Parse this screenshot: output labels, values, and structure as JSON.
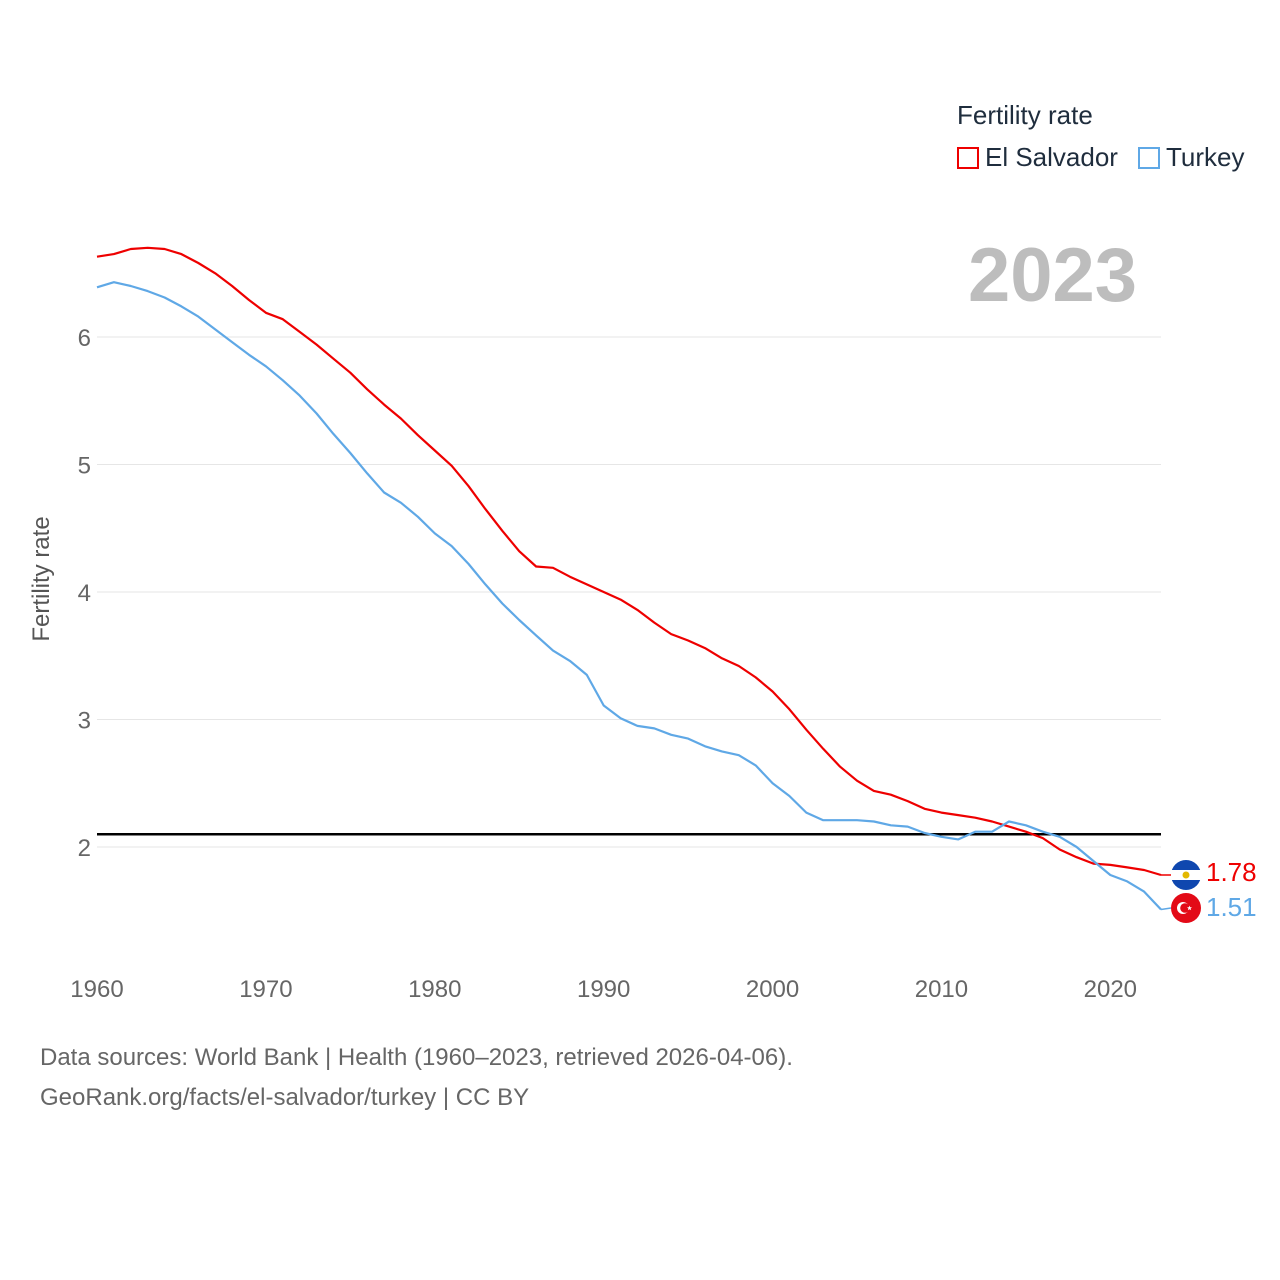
{
  "legend": {
    "title": "Fertility rate",
    "items": [
      {
        "label": "El Salvador",
        "color": "#ee0000"
      },
      {
        "label": "Turkey",
        "color": "#5fa8e6"
      }
    ]
  },
  "year_label": "2023",
  "y_axis_title": "Fertility rate",
  "end_labels": {
    "el_salvador": "1.78",
    "turkey": "1.51"
  },
  "footer": {
    "line1": "Data sources: World Bank | Health (1960–2023, retrieved 2026-04-06).",
    "line2": "GeoRank.org/facts/el-salvador/turkey | CC BY"
  },
  "chart_data": {
    "type": "line",
    "title": "Fertility rate",
    "xlabel": "",
    "ylabel": "Fertility rate",
    "xlim": [
      1960,
      2023
    ],
    "ylim": [
      1.2,
      6.9
    ],
    "x_ticks": [
      1960,
      1970,
      1980,
      1990,
      2000,
      2010,
      2020
    ],
    "y_ticks": [
      2,
      3,
      4,
      5,
      6
    ],
    "reference_line": 2.1,
    "grid": "horizontal",
    "legend_position": "top-right",
    "x": [
      1960,
      1961,
      1962,
      1963,
      1964,
      1965,
      1966,
      1967,
      1968,
      1969,
      1970,
      1971,
      1972,
      1973,
      1974,
      1975,
      1976,
      1977,
      1978,
      1979,
      1980,
      1981,
      1982,
      1983,
      1984,
      1985,
      1986,
      1987,
      1988,
      1989,
      1990,
      1991,
      1992,
      1993,
      1994,
      1995,
      1996,
      1997,
      1998,
      1999,
      2000,
      2001,
      2002,
      2003,
      2004,
      2005,
      2006,
      2007,
      2008,
      2009,
      2010,
      2011,
      2012,
      2013,
      2014,
      2015,
      2016,
      2017,
      2018,
      2019,
      2020,
      2021,
      2022,
      2023
    ],
    "series": [
      {
        "name": "El Salvador",
        "color": "#ee0000",
        "values": [
          6.63,
          6.65,
          6.69,
          6.7,
          6.69,
          6.65,
          6.58,
          6.5,
          6.4,
          6.29,
          6.19,
          6.14,
          6.04,
          5.94,
          5.83,
          5.72,
          5.59,
          5.47,
          5.36,
          5.23,
          5.11,
          4.99,
          4.83,
          4.65,
          4.48,
          4.32,
          4.2,
          4.19,
          4.12,
          4.06,
          4.0,
          3.94,
          3.86,
          3.76,
          3.67,
          3.62,
          3.56,
          3.48,
          3.42,
          3.33,
          3.22,
          3.08,
          2.92,
          2.77,
          2.63,
          2.52,
          2.44,
          2.41,
          2.36,
          2.3,
          2.27,
          2.25,
          2.23,
          2.2,
          2.16,
          2.12,
          2.07,
          1.98,
          1.92,
          1.87,
          1.86,
          1.84,
          1.82,
          1.78
        ]
      },
      {
        "name": "Turkey",
        "color": "#5fa8e6",
        "values": [
          6.39,
          6.43,
          6.4,
          6.36,
          6.31,
          6.24,
          6.16,
          6.06,
          5.96,
          5.86,
          5.77,
          5.66,
          5.54,
          5.4,
          5.24,
          5.09,
          4.93,
          4.78,
          4.7,
          4.59,
          4.46,
          4.36,
          4.22,
          4.06,
          3.91,
          3.78,
          3.66,
          3.54,
          3.46,
          3.35,
          3.11,
          3.01,
          2.95,
          2.93,
          2.88,
          2.85,
          2.79,
          2.75,
          2.72,
          2.64,
          2.5,
          2.4,
          2.27,
          2.21,
          2.21,
          2.21,
          2.2,
          2.17,
          2.16,
          2.11,
          2.08,
          2.06,
          2.12,
          2.12,
          2.2,
          2.17,
          2.12,
          2.08,
          2.0,
          1.89,
          1.78,
          1.73,
          1.65,
          1.51
        ]
      }
    ]
  }
}
